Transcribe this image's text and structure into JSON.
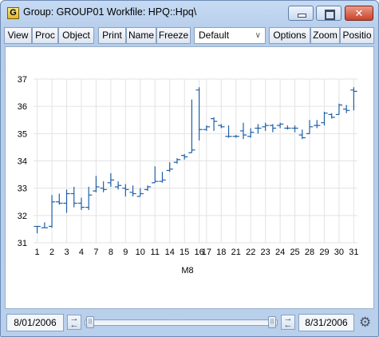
{
  "window": {
    "app_icon_letter": "G",
    "title": "Group: GROUP01   Workfile: HPQ::Hpq\\",
    "close_glyph": "✕"
  },
  "toolbar": {
    "view": "View",
    "proc": "Proc",
    "object": "Object",
    "print": "Print",
    "name": "Name",
    "freeze": "Freeze",
    "style_select": "Default",
    "options": "Options",
    "zoom": "Zoom",
    "position": "Positio"
  },
  "chart_data": {
    "type": "high-low-open-close",
    "xlabel": "M8",
    "ylim": [
      31,
      37
    ],
    "yticks": [
      31,
      32,
      33,
      34,
      35,
      36,
      37
    ],
    "x_tick_labels": [
      "1",
      "2",
      "3",
      "4",
      "7",
      "8",
      "9",
      "10",
      "11",
      "14",
      "15",
      "16",
      "17",
      "18",
      "21",
      "22",
      "23",
      "24",
      "25",
      "28",
      "29",
      "30",
      "31"
    ],
    "series_color": "#1f5fa8",
    "bars": [
      {
        "day": "1",
        "open": 31.6,
        "high": 31.6,
        "low": 31.35,
        "close": 31.6
      },
      {
        "day": "2",
        "open": 31.55,
        "high": 31.75,
        "low": 31.55,
        "close": 31.55
      },
      {
        "day": "2b",
        "open": 31.6,
        "high": 32.75,
        "low": 31.55,
        "close": 32.5
      },
      {
        "day": "3",
        "open": 32.5,
        "high": 32.8,
        "low": 32.4,
        "close": 32.45
      },
      {
        "day": "3b",
        "open": 32.45,
        "high": 32.95,
        "low": 32.1,
        "close": 32.8
      },
      {
        "day": "4",
        "open": 32.8,
        "high": 33.05,
        "low": 32.3,
        "close": 32.45
      },
      {
        "day": "4b",
        "open": 32.45,
        "high": 32.65,
        "low": 32.2,
        "close": 32.3
      },
      {
        "day": "7",
        "open": 32.3,
        "high": 33.05,
        "low": 32.2,
        "close": 32.75
      },
      {
        "day": "8",
        "open": 32.9,
        "high": 33.45,
        "low": 32.85,
        "close": 33.05
      },
      {
        "day": "8b",
        "open": 33.0,
        "high": 33.25,
        "low": 32.85,
        "close": 32.95
      },
      {
        "day": "9",
        "open": 33.2,
        "high": 33.55,
        "low": 33.05,
        "close": 33.3
      },
      {
        "day": "9b",
        "open": 33.05,
        "high": 33.25,
        "low": 32.95,
        "close": 33.1
      },
      {
        "day": "10",
        "open": 33.0,
        "high": 33.15,
        "low": 32.7,
        "close": 32.95
      },
      {
        "day": "10b",
        "open": 32.85,
        "high": 33.1,
        "low": 32.7,
        "close": 32.8
      },
      {
        "day": "11",
        "open": 32.7,
        "high": 33.0,
        "low": 32.7,
        "close": 32.8
      },
      {
        "day": "11b",
        "open": 32.95,
        "high": 33.1,
        "low": 32.9,
        "close": 33.05
      },
      {
        "day": "14",
        "open": 33.2,
        "high": 33.8,
        "low": 33.2,
        "close": 33.25
      },
      {
        "day": "14b",
        "open": 33.25,
        "high": 33.6,
        "low": 33.2,
        "close": 33.3
      },
      {
        "day": "15",
        "open": 33.65,
        "high": 33.95,
        "low": 33.6,
        "close": 33.7
      },
      {
        "day": "15b",
        "open": 33.95,
        "high": 34.1,
        "low": 33.9,
        "close": 34.05
      },
      {
        "day": "16",
        "open": 34.2,
        "high": 34.25,
        "low": 34.05,
        "close": 34.15
      },
      {
        "day": "16b",
        "open": 34.3,
        "high": 36.25,
        "low": 34.3,
        "close": 34.4
      },
      {
        "day": "17",
        "open": 36.6,
        "high": 36.7,
        "low": 34.75,
        "close": 35.15
      },
      {
        "day": "17b",
        "open": 35.15,
        "high": 35.3,
        "low": 35.1,
        "close": 35.25
      },
      {
        "day": "18",
        "open": 35.55,
        "high": 35.6,
        "low": 35.1,
        "close": 35.45
      },
      {
        "day": "18b",
        "open": 35.3,
        "high": 35.35,
        "low": 35.2,
        "close": 35.25
      },
      {
        "day": "21",
        "open": 34.9,
        "high": 35.3,
        "low": 34.85,
        "close": 34.9
      },
      {
        "day": "21b",
        "open": 34.9,
        "high": 34.95,
        "low": 34.85,
        "close": 34.9
      },
      {
        "day": "22",
        "open": 35.1,
        "high": 35.4,
        "low": 34.8,
        "close": 34.95
      },
      {
        "day": "22b",
        "open": 34.9,
        "high": 35.2,
        "low": 34.85,
        "close": 35.05
      },
      {
        "day": "23",
        "open": 35.2,
        "high": 35.35,
        "low": 35.0,
        "close": 35.2
      },
      {
        "day": "23b",
        "open": 35.25,
        "high": 35.4,
        "low": 35.1,
        "close": 35.3
      },
      {
        "day": "24",
        "open": 35.3,
        "high": 35.35,
        "low": 35.05,
        "close": 35.2
      },
      {
        "day": "24b",
        "open": 35.3,
        "high": 35.4,
        "low": 35.2,
        "close": 35.35
      },
      {
        "day": "25",
        "open": 35.2,
        "high": 35.3,
        "low": 35.15,
        "close": 35.2
      },
      {
        "day": "25b",
        "open": 35.2,
        "high": 35.3,
        "low": 35.05,
        "close": 35.2
      },
      {
        "day": "28",
        "open": 34.95,
        "high": 35.15,
        "low": 34.8,
        "close": 34.85
      },
      {
        "day": "28b",
        "open": 35.0,
        "high": 35.5,
        "low": 35.0,
        "close": 35.25
      },
      {
        "day": "29",
        "open": 35.3,
        "high": 35.5,
        "low": 35.2,
        "close": 35.3
      },
      {
        "day": "29b",
        "open": 35.4,
        "high": 35.8,
        "low": 35.3,
        "close": 35.75
      },
      {
        "day": "30",
        "open": 35.7,
        "high": 35.75,
        "low": 35.55,
        "close": 35.6
      },
      {
        "day": "30b",
        "open": 35.7,
        "high": 36.1,
        "low": 35.7,
        "close": 36.05
      },
      {
        "day": "31",
        "open": 35.9,
        "high": 36.05,
        "low": 35.75,
        "close": 35.85
      },
      {
        "day": "31b",
        "open": 36.6,
        "high": 36.7,
        "low": 35.85,
        "close": 36.55
      }
    ]
  },
  "status": {
    "start_date": "8/01/2006",
    "end_date": "8/31/2006",
    "thumb_grip": "|||",
    "track_grip": "···",
    "settings_icon_glyph": "⚙"
  }
}
